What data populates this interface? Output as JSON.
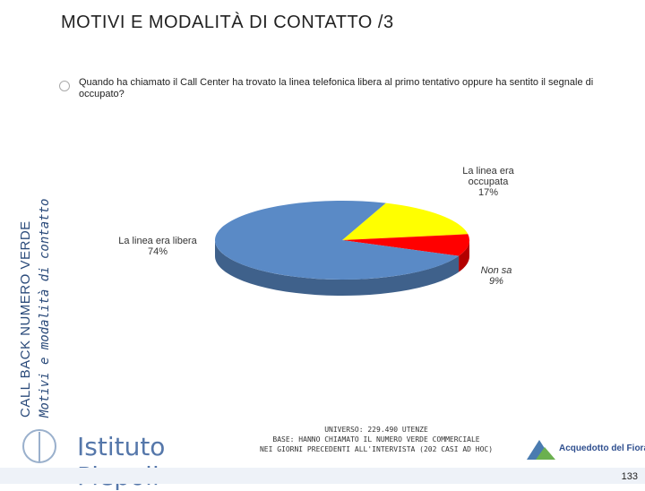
{
  "page": {
    "title": "MOTIVI E MODALITÀ DI CONTATTO /3",
    "sidebar_line1": "CALL BACK NUMERO VERDE",
    "sidebar_line2": "Motivi e modalità di contatto",
    "question": "Quando ha chiamato il Call Center ha trovato la linea telefonica libera al primo tentativo oppure ha sentito il segnale di occupato?",
    "footer_line1": "UNIVERSO: 229.490 UTENZE",
    "footer_line2": "BASE: HANNO CHIAMATO IL NUMERO VERDE COMMERCIALE",
    "footer_line3": "NEI GIORNI PRECEDENTI ALL'INTERVISTA (202 CASI AD HOC)",
    "logo_text": "Istituto Piepoli",
    "partner_text": "Acquedotto del Fiora",
    "page_number": "133"
  },
  "chart_data": {
    "type": "pie",
    "style": "3d",
    "slices": [
      {
        "label": "La linea era libera",
        "value": 74,
        "value_label": "74%",
        "color": "#5a8ac6"
      },
      {
        "label": "La linea era occupata",
        "value": 17,
        "value_label": "17%",
        "color": "#ffff00"
      },
      {
        "label": "Non sa",
        "value": 9,
        "value_label": "9%",
        "color": "#ff0000"
      }
    ]
  }
}
